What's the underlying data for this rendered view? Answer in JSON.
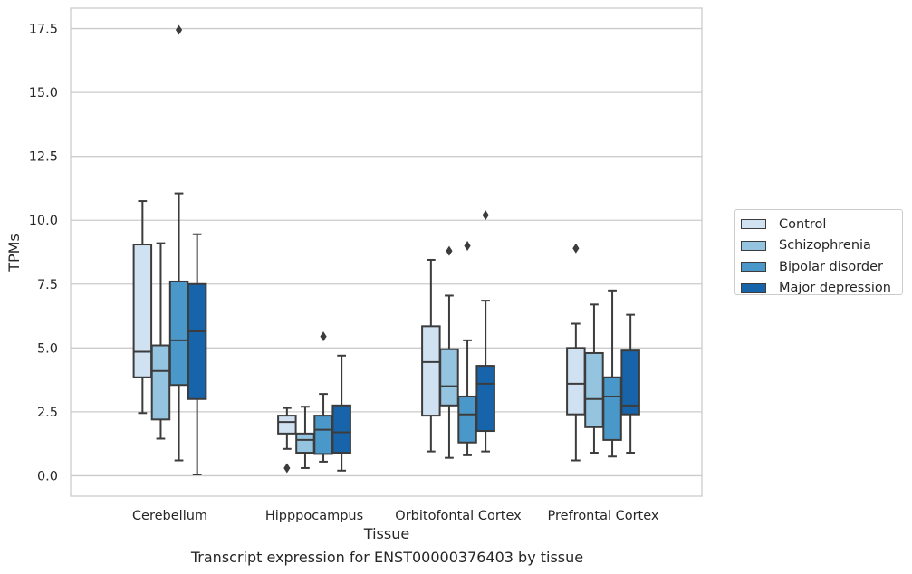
{
  "chart_data": {
    "type": "box",
    "title": "",
    "xlabel": "Tissue",
    "ylabel": "TPMs",
    "caption": "Transcript expression for ENST00000376403 by tissue",
    "ylim": [
      -0.8,
      18.3
    ],
    "yticks": [
      "0.0",
      "2.5",
      "5.0",
      "7.5",
      "10.0",
      "12.5",
      "15.0",
      "17.5"
    ],
    "ytick_values": [
      0,
      2.5,
      5,
      7.5,
      10,
      12.5,
      15,
      17.5
    ],
    "categories": [
      "Cerebellum",
      "Hipppocampus",
      "Orbitofontal Cortex",
      "Prefrontal Cortex"
    ],
    "grid": "horizontal",
    "legend_position": "right",
    "series": [
      {
        "name": "Control",
        "color": "#d0e1f2",
        "boxes": [
          {
            "whislo": 2.45,
            "q1": 3.85,
            "med": 4.85,
            "q3": 9.05,
            "whishi": 10.75,
            "fliers": []
          },
          {
            "whislo": 1.05,
            "q1": 1.65,
            "med": 2.1,
            "q3": 2.35,
            "whishi": 2.65,
            "fliers": [
              0.3
            ]
          },
          {
            "whislo": 0.95,
            "q1": 2.35,
            "med": 4.45,
            "q3": 5.85,
            "whishi": 8.45,
            "fliers": []
          },
          {
            "whislo": 0.6,
            "q1": 2.4,
            "med": 3.6,
            "q3": 5.0,
            "whishi": 5.95,
            "fliers": [
              8.9
            ]
          }
        ]
      },
      {
        "name": "Schizophrenia",
        "color": "#94c4df",
        "boxes": [
          {
            "whislo": 1.45,
            "q1": 2.2,
            "med": 4.1,
            "q3": 5.1,
            "whishi": 9.1,
            "fliers": []
          },
          {
            "whislo": 0.3,
            "q1": 0.9,
            "med": 1.4,
            "q3": 1.65,
            "whishi": 2.7,
            "fliers": []
          },
          {
            "whislo": 0.7,
            "q1": 2.75,
            "med": 3.5,
            "q3": 4.95,
            "whishi": 7.05,
            "fliers": [
              8.8
            ]
          },
          {
            "whislo": 0.9,
            "q1": 1.9,
            "med": 3.0,
            "q3": 4.8,
            "whishi": 6.7,
            "fliers": []
          }
        ]
      },
      {
        "name": "Bipolar disorder",
        "color": "#4a98c9",
        "boxes": [
          {
            "whislo": 0.6,
            "q1": 3.55,
            "med": 5.3,
            "q3": 7.6,
            "whishi": 11.05,
            "fliers": [
              17.45
            ]
          },
          {
            "whislo": 0.55,
            "q1": 0.85,
            "med": 1.8,
            "q3": 2.35,
            "whishi": 3.2,
            "fliers": [
              5.45
            ]
          },
          {
            "whislo": 0.8,
            "q1": 1.3,
            "med": 2.4,
            "q3": 3.1,
            "whishi": 5.3,
            "fliers": [
              9.0
            ]
          },
          {
            "whislo": 0.75,
            "q1": 1.4,
            "med": 3.1,
            "q3": 3.85,
            "whishi": 7.25,
            "fliers": []
          }
        ]
      },
      {
        "name": "Major depression",
        "color": "#1764ab",
        "boxes": [
          {
            "whislo": 0.05,
            "q1": 3.0,
            "med": 5.65,
            "q3": 7.5,
            "whishi": 9.45,
            "fliers": []
          },
          {
            "whislo": 0.2,
            "q1": 0.9,
            "med": 1.7,
            "q3": 2.75,
            "whishi": 4.7,
            "fliers": []
          },
          {
            "whislo": 0.95,
            "q1": 1.75,
            "med": 3.6,
            "q3": 4.3,
            "whishi": 6.85,
            "fliers": [
              10.2
            ]
          },
          {
            "whislo": 0.9,
            "q1": 2.4,
            "med": 2.75,
            "q3": 4.9,
            "whishi": 6.3,
            "fliers": []
          }
        ]
      }
    ]
  }
}
